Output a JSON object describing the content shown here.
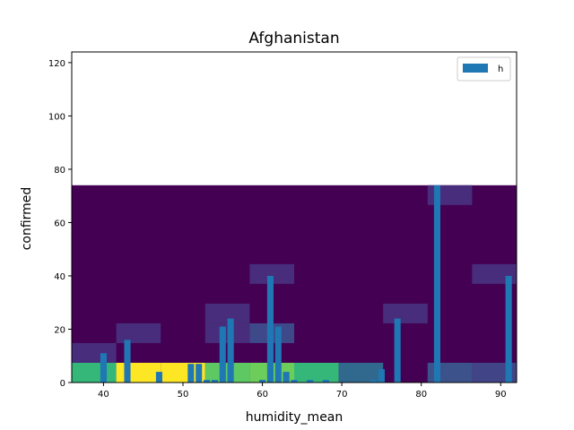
{
  "chart_data": {
    "type": "heatmap",
    "title": "Afghanistan",
    "xlabel": "humidity_mean",
    "ylabel": "confirmed",
    "xlim": [
      36,
      92
    ],
    "ylim": [
      0,
      124
    ],
    "xticks": [
      40,
      50,
      60,
      70,
      80,
      90
    ],
    "yticks": [
      0,
      20,
      40,
      60,
      80,
      100,
      120
    ],
    "grid": false,
    "legend": {
      "placement": "top-right",
      "entries": [
        {
          "label": "h",
          "color": "#1f77b4"
        }
      ]
    },
    "colors": {
      "background_bin": "#440154",
      "bar": "#1f77b4"
    },
    "heatmap": {
      "x_edges": [
        36.0,
        41.6,
        47.2,
        52.8,
        58.4,
        64.0,
        69.6,
        75.2,
        80.8,
        86.4,
        92.0
      ],
      "y_edges": [
        0.0,
        7.4,
        14.8,
        22.2,
        29.6,
        37.0,
        44.4,
        51.8,
        59.2,
        66.6,
        74.0
      ],
      "cells": [
        {
          "x": 36.0,
          "y": 0.0,
          "color": "#35b779"
        },
        {
          "x": 41.6,
          "y": 0.0,
          "color": "#fde725"
        },
        {
          "x": 47.2,
          "y": 0.0,
          "color": "#fde725"
        },
        {
          "x": 52.8,
          "y": 0.0,
          "color": "#5ec962"
        },
        {
          "x": 58.4,
          "y": 0.0,
          "color": "#6ccd5a"
        },
        {
          "x": 64.0,
          "y": 0.0,
          "color": "#35b779"
        },
        {
          "x": 69.6,
          "y": 0.0,
          "color": "#31688e"
        },
        {
          "x": 80.8,
          "y": 0.0,
          "color": "#3b528b"
        },
        {
          "x": 86.4,
          "y": 0.0,
          "color": "#414487"
        },
        {
          "x": 36.0,
          "y": 7.4,
          "color": "#472d7b"
        },
        {
          "x": 41.6,
          "y": 14.8,
          "color": "#472d7b"
        },
        {
          "x": 52.8,
          "y": 14.8,
          "color": "#472d7b"
        },
        {
          "x": 58.4,
          "y": 14.8,
          "color": "#3e4989"
        },
        {
          "x": 52.8,
          "y": 22.2,
          "color": "#472d7b"
        },
        {
          "x": 75.2,
          "y": 22.2,
          "color": "#472d7b"
        },
        {
          "x": 58.4,
          "y": 37.0,
          "color": "#472d7b"
        },
        {
          "x": 86.4,
          "y": 37.0,
          "color": "#472d7b"
        },
        {
          "x": 80.8,
          "y": 66.6,
          "color": "#472d7b"
        }
      ]
    },
    "bars": {
      "name": "h",
      "width": 0.8,
      "x": [
        40,
        43,
        47,
        51,
        52,
        53,
        54,
        55,
        56,
        60,
        61,
        62,
        63,
        64,
        66,
        68,
        74,
        75,
        77,
        82,
        91
      ],
      "values": [
        11,
        16,
        4,
        7,
        7,
        1,
        1,
        21,
        24,
        1,
        40,
        21,
        4,
        1,
        1,
        1,
        1,
        5,
        24,
        74,
        40
      ]
    }
  }
}
